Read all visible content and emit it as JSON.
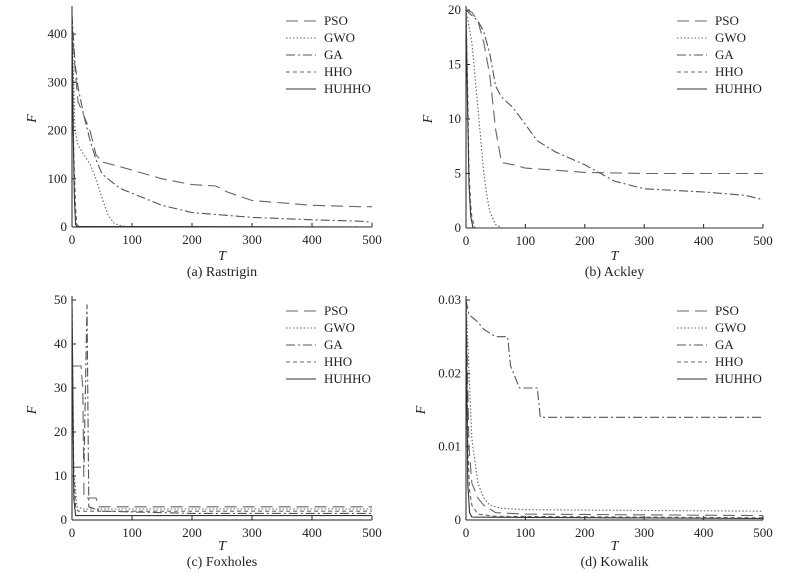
{
  "series_styles": [
    {
      "name": "PSO",
      "color": "#666666",
      "dash": "12,6"
    },
    {
      "name": "GWO",
      "color": "#666666",
      "dash": "1.5,2"
    },
    {
      "name": "GA",
      "color": "#555555",
      "dash": "9,3,2,3"
    },
    {
      "name": "HHO",
      "color": "#666666",
      "dash": "4,3"
    },
    {
      "name": "HUHHO",
      "color": "#333333",
      "dash": ""
    }
  ],
  "chart_data": [
    {
      "type": "line",
      "caption": "(a) Rastrigin",
      "xlabel": "T",
      "ylabel": "F",
      "xlim": [
        0,
        500
      ],
      "ylim": [
        0,
        450
      ],
      "xticks": [
        0,
        100,
        200,
        300,
        400,
        500
      ],
      "yticks": [
        0,
        100,
        200,
        300,
        400
      ],
      "ytick_labels": [
        "0",
        "100",
        "200",
        "300",
        "400"
      ],
      "legend": "top-right",
      "series": [
        {
          "name": "PSO",
          "points": [
            [
              0,
              420
            ],
            [
              5,
              330
            ],
            [
              10,
              260
            ],
            [
              20,
              230
            ],
            [
              30,
              200
            ],
            [
              40,
              150
            ],
            [
              50,
              135
            ],
            [
              80,
              125
            ],
            [
              100,
              118
            ],
            [
              150,
              100
            ],
            [
              200,
              88
            ],
            [
              240,
              85
            ],
            [
              260,
              72
            ],
            [
              300,
              55
            ],
            [
              400,
              45
            ],
            [
              480,
              42
            ],
            [
              500,
              42
            ]
          ]
        },
        {
          "name": "GWO",
          "points": [
            [
              0,
              420
            ],
            [
              5,
              200
            ],
            [
              10,
              170
            ],
            [
              20,
              150
            ],
            [
              30,
              130
            ],
            [
              40,
              100
            ],
            [
              50,
              60
            ],
            [
              60,
              25
            ],
            [
              70,
              8
            ],
            [
              80,
              3
            ],
            [
              90,
              1
            ],
            [
              500,
              0
            ]
          ]
        },
        {
          "name": "GA",
          "points": [
            [
              0,
              440
            ],
            [
              5,
              340
            ],
            [
              10,
              290
            ],
            [
              20,
              230
            ],
            [
              30,
              180
            ],
            [
              40,
              140
            ],
            [
              50,
              110
            ],
            [
              80,
              80
            ],
            [
              100,
              70
            ],
            [
              150,
              45
            ],
            [
              200,
              30
            ],
            [
              300,
              20
            ],
            [
              400,
              15
            ],
            [
              480,
              12
            ],
            [
              500,
              10
            ]
          ]
        },
        {
          "name": "HHO",
          "points": [
            [
              0,
              400
            ],
            [
              3,
              150
            ],
            [
              6,
              40
            ],
            [
              8,
              5
            ],
            [
              12,
              1
            ],
            [
              500,
              0
            ]
          ]
        },
        {
          "name": "HUHHO",
          "points": [
            [
              0,
              440
            ],
            [
              2,
              200
            ],
            [
              4,
              60
            ],
            [
              6,
              5
            ],
            [
              8,
              1
            ],
            [
              500,
              0
            ]
          ]
        }
      ]
    },
    {
      "type": "line",
      "caption": "(b) Ackley",
      "xlabel": "T",
      "ylabel": "F",
      "xlim": [
        0,
        500
      ],
      "ylim": [
        0,
        20
      ],
      "xticks": [
        0,
        100,
        200,
        300,
        400,
        500
      ],
      "yticks": [
        0,
        5,
        10,
        15,
        20
      ],
      "ytick_labels": [
        "0",
        "5",
        "10",
        "15",
        "20"
      ],
      "legend": "top-right",
      "series": [
        {
          "name": "PSO",
          "points": [
            [
              0,
              20
            ],
            [
              10,
              19.8
            ],
            [
              20,
              19
            ],
            [
              30,
              17
            ],
            [
              40,
              14
            ],
            [
              50,
              9
            ],
            [
              60,
              6
            ],
            [
              80,
              5.8
            ],
            [
              100,
              5.5
            ],
            [
              150,
              5.3
            ],
            [
              200,
              5.1
            ],
            [
              300,
              5.0
            ],
            [
              400,
              5.0
            ],
            [
              500,
              5.0
            ]
          ]
        },
        {
          "name": "GWO",
          "points": [
            [
              0,
              20
            ],
            [
              10,
              17
            ],
            [
              15,
              14
            ],
            [
              20,
              11
            ],
            [
              25,
              8
            ],
            [
              30,
              5
            ],
            [
              35,
              3
            ],
            [
              40,
              1.5
            ],
            [
              50,
              0.3
            ],
            [
              60,
              0
            ],
            [
              500,
              0
            ]
          ]
        },
        {
          "name": "GA",
          "points": [
            [
              0,
              20
            ],
            [
              10,
              19.5
            ],
            [
              20,
              19
            ],
            [
              30,
              18
            ],
            [
              40,
              16
            ],
            [
              50,
              13
            ],
            [
              60,
              12
            ],
            [
              80,
              11
            ],
            [
              100,
              9.5
            ],
            [
              120,
              8
            ],
            [
              150,
              7
            ],
            [
              200,
              5.8
            ],
            [
              250,
              4.3
            ],
            [
              300,
              3.6
            ],
            [
              400,
              3.3
            ],
            [
              470,
              3.0
            ],
            [
              500,
              2.6
            ]
          ]
        },
        {
          "name": "HHO",
          "points": [
            [
              0,
              20
            ],
            [
              3,
              12
            ],
            [
              5,
              5
            ],
            [
              8,
              2
            ],
            [
              10,
              1
            ],
            [
              15,
              0
            ],
            [
              500,
              0
            ]
          ]
        },
        {
          "name": "HUHHO",
          "points": [
            [
              0,
              20
            ],
            [
              3,
              10
            ],
            [
              5,
              4
            ],
            [
              8,
              1
            ],
            [
              12,
              0
            ],
            [
              500,
              0
            ]
          ]
        }
      ]
    },
    {
      "type": "line",
      "caption": "(c) Foxholes",
      "xlabel": "T",
      "ylabel": "F",
      "xlim": [
        0,
        500
      ],
      "ylim": [
        0,
        50
      ],
      "xticks": [
        0,
        100,
        200,
        300,
        400,
        500
      ],
      "yticks": [
        0,
        10,
        20,
        30,
        40,
        50
      ],
      "ytick_labels": [
        "0",
        "10",
        "20",
        "30",
        "40",
        "50"
      ],
      "legend": "top-right",
      "series": [
        {
          "name": "PSO",
          "points": [
            [
              0,
              35
            ],
            [
              15,
              35
            ],
            [
              18,
              30
            ],
            [
              20,
              5
            ],
            [
              40,
              5
            ],
            [
              45,
              3
            ],
            [
              500,
              3
            ]
          ]
        },
        {
          "name": "GWO",
          "points": [
            [
              0,
              10
            ],
            [
              5,
              9
            ],
            [
              8,
              3
            ],
            [
              20,
              2.5
            ],
            [
              500,
              2.5
            ]
          ]
        },
        {
          "name": "GA",
          "points": [
            [
              0,
              12
            ],
            [
              20,
              12
            ],
            [
              25,
              49
            ],
            [
              28,
              3
            ],
            [
              50,
              2
            ],
            [
              200,
              1.5
            ],
            [
              500,
              1.5
            ]
          ]
        },
        {
          "name": "HHO",
          "points": [
            [
              0,
              50
            ],
            [
              3,
              10
            ],
            [
              6,
              3
            ],
            [
              10,
              2
            ],
            [
              500,
              2
            ]
          ]
        },
        {
          "name": "HUHHO",
          "points": [
            [
              0,
              50
            ],
            [
              3,
              5
            ],
            [
              6,
              1
            ],
            [
              500,
              1
            ]
          ]
        }
      ]
    },
    {
      "type": "line",
      "caption": "(d) Kowalik",
      "xlabel": "T",
      "ylabel": "F",
      "xlim": [
        0,
        500
      ],
      "ylim": [
        0,
        0.03
      ],
      "xticks": [
        0,
        100,
        200,
        300,
        400,
        500
      ],
      "yticks": [
        0,
        0.01,
        0.02,
        0.03
      ],
      "ytick_labels": [
        "0",
        "0.01",
        "0.02",
        "0.03"
      ],
      "legend": "top-right",
      "series": [
        {
          "name": "PSO",
          "points": [
            [
              0,
              0.03
            ],
            [
              5,
              0.01
            ],
            [
              10,
              0.005
            ],
            [
              20,
              0.003
            ],
            [
              30,
              0.002
            ],
            [
              50,
              0.001
            ],
            [
              100,
              0.0008
            ],
            [
              500,
              0.0006
            ]
          ]
        },
        {
          "name": "GWO",
          "points": [
            [
              0,
              0.03
            ],
            [
              10,
              0.011
            ],
            [
              15,
              0.008
            ],
            [
              20,
              0.005
            ],
            [
              30,
              0.003
            ],
            [
              40,
              0.002
            ],
            [
              60,
              0.0016
            ],
            [
              100,
              0.0014
            ],
            [
              500,
              0.0012
            ]
          ]
        },
        {
          "name": "GA",
          "points": [
            [
              0,
              0.03
            ],
            [
              5,
              0.028
            ],
            [
              20,
              0.027
            ],
            [
              30,
              0.026
            ],
            [
              50,
              0.025
            ],
            [
              70,
              0.025
            ],
            [
              75,
              0.021
            ],
            [
              90,
              0.018
            ],
            [
              120,
              0.018
            ],
            [
              125,
              0.014
            ],
            [
              200,
              0.014
            ],
            [
              500,
              0.014
            ]
          ]
        },
        {
          "name": "HHO",
          "points": [
            [
              0,
              0.03
            ],
            [
              3,
              0.01
            ],
            [
              6,
              0.004
            ],
            [
              10,
              0.002
            ],
            [
              20,
              0.0008
            ],
            [
              50,
              0.0005
            ],
            [
              500,
              0.0003
            ]
          ]
        },
        {
          "name": "HUHHO",
          "points": [
            [
              0,
              0.03
            ],
            [
              3,
              0.005
            ],
            [
              6,
              0.001
            ],
            [
              10,
              0.0004
            ],
            [
              500,
              0.0002
            ]
          ]
        }
      ]
    }
  ]
}
